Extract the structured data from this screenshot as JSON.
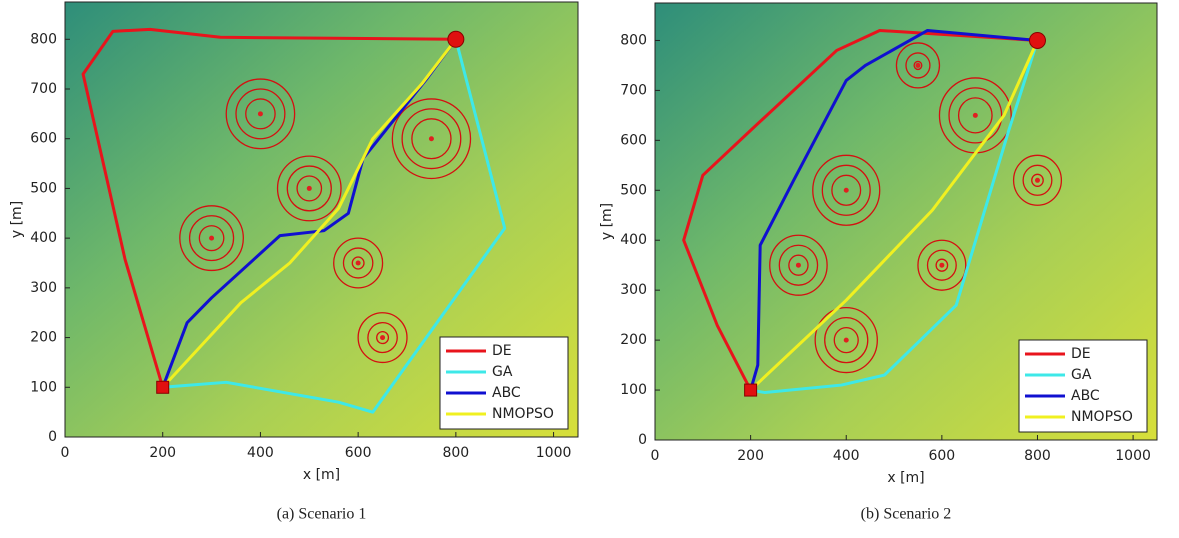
{
  "chart_data": [
    {
      "type": "line",
      "caption": "(a) Scenario 1",
      "x_label": "x [m]",
      "y_label": "y [m]",
      "xlim": [
        0,
        1050
      ],
      "ylim": [
        0,
        875
      ],
      "xticks": [
        0,
        200,
        400,
        600,
        800,
        1000
      ],
      "yticks": [
        0,
        100,
        200,
        300,
        400,
        500,
        600,
        700,
        800
      ],
      "legend": "lower right",
      "start": {
        "x": 200,
        "y": 100
      },
      "goal": {
        "x": 800,
        "y": 800
      },
      "threats": [
        {
          "x": 400,
          "y": 650,
          "radii": [
            70,
            50,
            30
          ]
        },
        {
          "x": 750,
          "y": 600,
          "radii": [
            80,
            60,
            40
          ]
        },
        {
          "x": 500,
          "y": 500,
          "radii": [
            65,
            45,
            25
          ]
        },
        {
          "x": 300,
          "y": 400,
          "radii": [
            65,
            45,
            25
          ]
        },
        {
          "x": 600,
          "y": 350,
          "radii": [
            50,
            30,
            12
          ]
        },
        {
          "x": 650,
          "y": 200,
          "radii": [
            50,
            30,
            12
          ]
        }
      ],
      "series": [
        {
          "name": "DE",
          "color": "#e8141c",
          "x": [
            200,
            123,
            37,
            98,
            174,
            318,
            800
          ],
          "values": [
            100,
            357,
            730,
            816,
            820,
            804,
            800
          ]
        },
        {
          "name": "GA",
          "color": "#3ee8e8",
          "x": [
            200,
            330,
            560,
            630,
            900,
            800
          ],
          "values": [
            100,
            110,
            70,
            50,
            420,
            800
          ]
        },
        {
          "name": "ABC",
          "color": "#1010d0",
          "x": [
            200,
            250,
            300,
            440,
            530,
            580,
            610,
            740,
            800
          ],
          "values": [
            100,
            230,
            280,
            405,
            415,
            450,
            560,
            720,
            800
          ]
        },
        {
          "name": "NMOPSO",
          "color": "#f0f020",
          "x": [
            200,
            360,
            460,
            560,
            630,
            730,
            800
          ],
          "values": [
            100,
            270,
            350,
            460,
            600,
            710,
            800
          ]
        }
      ]
    },
    {
      "type": "line",
      "caption": "(b) Scenario 2",
      "x_label": "x [m]",
      "y_label": "y [m]",
      "xlim": [
        0,
        1050
      ],
      "ylim": [
        0,
        875
      ],
      "xticks": [
        0,
        200,
        400,
        600,
        800,
        1000
      ],
      "yticks": [
        0,
        100,
        200,
        300,
        400,
        500,
        600,
        700,
        800
      ],
      "legend": "lower right",
      "start": {
        "x": 200,
        "y": 100
      },
      "goal": {
        "x": 800,
        "y": 800
      },
      "threats": [
        {
          "x": 550,
          "y": 750,
          "radii": [
            45,
            25,
            8
          ]
        },
        {
          "x": 670,
          "y": 650,
          "radii": [
            75,
            55,
            35
          ]
        },
        {
          "x": 400,
          "y": 500,
          "radii": [
            70,
            50,
            30
          ]
        },
        {
          "x": 800,
          "y": 520,
          "radii": [
            50,
            30,
            12
          ]
        },
        {
          "x": 300,
          "y": 350,
          "radii": [
            60,
            40,
            20
          ]
        },
        {
          "x": 600,
          "y": 350,
          "radii": [
            50,
            30,
            12
          ]
        },
        {
          "x": 400,
          "y": 200,
          "radii": [
            65,
            45,
            25
          ]
        }
      ],
      "series": [
        {
          "name": "DE",
          "color": "#e8141c",
          "x": [
            200,
            130,
            60,
            100,
            200,
            380,
            470,
            800
          ],
          "values": [
            100,
            230,
            400,
            530,
            620,
            780,
            820,
            800
          ]
        },
        {
          "name": "GA",
          "color": "#3ee8e8",
          "x": [
            200,
            230,
            390,
            480,
            630,
            740,
            800
          ],
          "values": [
            100,
            95,
            110,
            130,
            270,
            620,
            800
          ]
        },
        {
          "name": "ABC",
          "color": "#1010d0",
          "x": [
            200,
            215,
            220,
            290,
            400,
            440,
            570,
            800
          ],
          "values": [
            100,
            150,
            390,
            520,
            720,
            750,
            820,
            800
          ]
        },
        {
          "name": "NMOPSO",
          "color": "#f0f020",
          "x": [
            200,
            400,
            580,
            730,
            800
          ],
          "values": [
            100,
            280,
            460,
            650,
            800
          ]
        }
      ]
    }
  ]
}
